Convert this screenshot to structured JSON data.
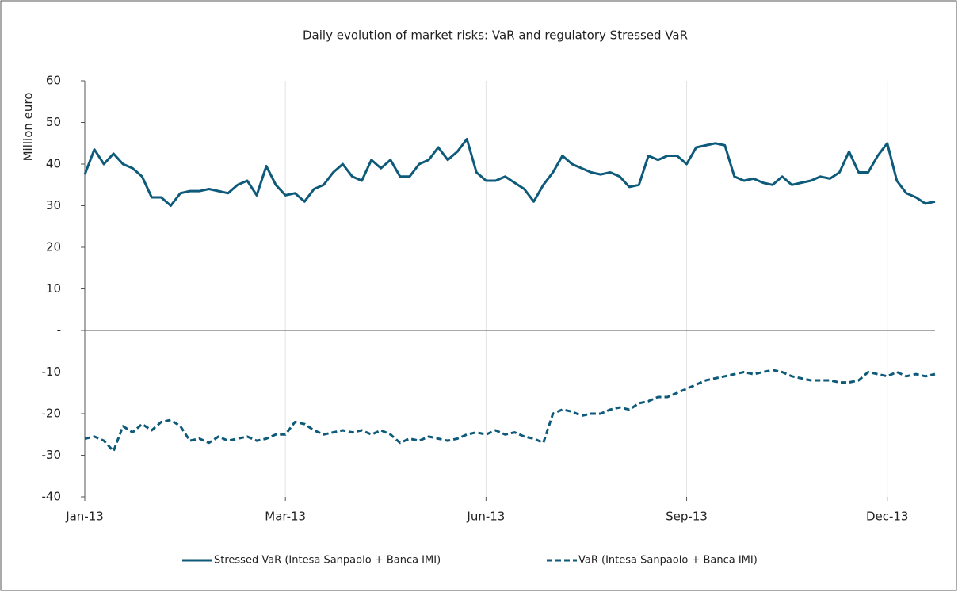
{
  "chart_data": {
    "type": "line",
    "title": "Daily evolution of market risks: VaR and regulatory Stressed VaR",
    "y_label": "Million euro",
    "x": [
      0,
      3,
      6,
      9,
      12,
      15,
      18,
      21,
      24,
      27,
      30,
      33,
      36,
      39,
      42,
      45,
      48,
      51,
      54,
      57,
      60,
      63,
      66,
      69,
      72,
      75,
      78,
      81,
      84,
      87,
      90,
      93,
      96,
      99,
      102,
      105,
      108,
      111,
      114,
      117,
      120,
      123,
      126,
      129,
      132,
      135,
      138,
      141,
      144,
      147,
      150,
      153,
      156,
      159,
      162,
      165,
      168,
      171,
      174,
      177,
      180,
      183,
      186,
      189,
      192,
      195,
      198,
      201,
      204,
      207,
      210,
      213,
      216,
      219,
      222,
      225,
      228,
      231,
      234,
      237,
      240,
      243,
      246,
      249,
      252,
      255,
      258,
      261,
      264,
      267
    ],
    "series": [
      {
        "name": "Stressed VaR (Intesa Sanpaolo + Banca IMI)",
        "color": "#0e5a7a",
        "dashed": false,
        "values": [
          37.5,
          43.5,
          40,
          42.5,
          40,
          39,
          37,
          32,
          32,
          30,
          33,
          33.5,
          33.5,
          34,
          33.5,
          33,
          35,
          36,
          32.5,
          39.5,
          35,
          32.5,
          33,
          31,
          34,
          35,
          38,
          40,
          37,
          36,
          41,
          39,
          41,
          37,
          37,
          40,
          41,
          44,
          41,
          43,
          46,
          38,
          36,
          36,
          37,
          35.5,
          34,
          31,
          35,
          38,
          42,
          40,
          39,
          38,
          37.5,
          38,
          37,
          34.5,
          35,
          42,
          41,
          42,
          42,
          40,
          44,
          44.5,
          45,
          44.5,
          37,
          36,
          36.5,
          35.5,
          35,
          37,
          35,
          35.5,
          36,
          37,
          36.5,
          38,
          43,
          38,
          38,
          42,
          45,
          36,
          33,
          32,
          30.5,
          31
        ]
      },
      {
        "name": "VaR (Intesa Sanpaolo + Banca IMI)",
        "color": "#0e5a7a",
        "dashed": true,
        "values": [
          -26,
          -25.5,
          -26.5,
          -29,
          -23,
          -24.5,
          -22.5,
          -24,
          -22,
          -21.5,
          -23,
          -26.5,
          -26,
          -27,
          -25.5,
          -26.5,
          -26,
          -25.5,
          -26.5,
          -26,
          -25,
          -25,
          -22,
          -22.5,
          -24,
          -25,
          -24.5,
          -24,
          -24.5,
          -24,
          -25,
          -24,
          -25,
          -27,
          -26,
          -26.5,
          -25.5,
          -26,
          -26.5,
          -26,
          -25,
          -24.5,
          -25,
          -24,
          -25,
          -24.5,
          -25.5,
          -26,
          -27,
          -20,
          -19,
          -19.5,
          -20.5,
          -20,
          -20,
          -19,
          -18.5,
          -19,
          -17.5,
          -17,
          -16,
          -16,
          -15,
          -14,
          -13,
          -12,
          -11.5,
          -11,
          -10.5,
          -10,
          -10.5,
          -10,
          -9.5,
          -10,
          -11,
          -11.5,
          -12,
          -12,
          -12,
          -12.5,
          -12.5,
          -12,
          -10,
          -10.5,
          -11,
          -10,
          -11,
          -10.5,
          -11,
          -10.5
        ]
      }
    ],
    "xlim": [
      0,
      267
    ],
    "xticks": [
      {
        "value": 0,
        "label": "Jan-13"
      },
      {
        "value": 63,
        "label": "Mar-13"
      },
      {
        "value": 126,
        "label": "Jun-13"
      },
      {
        "value": 189,
        "label": "Sep-13"
      },
      {
        "value": 252,
        "label": "Dec-13"
      }
    ],
    "ylim": [
      -40,
      60
    ],
    "yticks": [
      60,
      50,
      40,
      30,
      20,
      10,
      {
        "value": 0,
        "label": "-"
      },
      -10,
      -20,
      -30,
      -40
    ],
    "grid": "x",
    "legend": "bottom"
  }
}
